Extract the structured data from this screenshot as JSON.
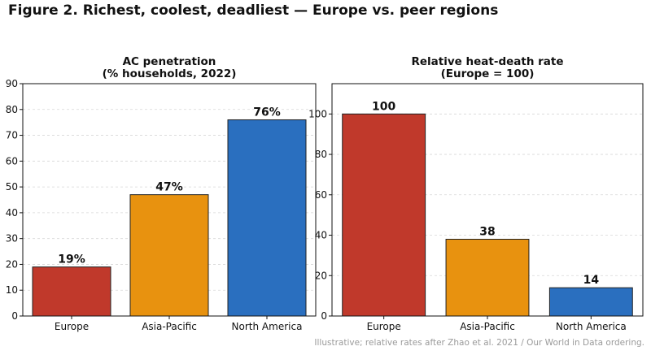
{
  "figure_title": "Figure 2.  Richest, coolest, deadliest — Europe vs. peer regions",
  "footnote": "Illustrative; relative rates after Zhao et al. 2021 / Our World in Data ordering.",
  "chart_data": [
    {
      "type": "bar",
      "title_lines": [
        "AC penetration",
        "(% households, 2022)"
      ],
      "categories": [
        "Europe",
        "Asia-Pacific",
        "North America"
      ],
      "values": [
        19,
        47,
        76
      ],
      "data_labels": [
        "19%",
        "47%",
        "76%"
      ],
      "colors": [
        "#c0392b",
        "#e8920f",
        "#2a6fbf"
      ],
      "ylim": [
        0,
        90
      ],
      "yticks": [
        0,
        10,
        20,
        30,
        40,
        50,
        60,
        70,
        80,
        90
      ],
      "grid": "horizontal dashed"
    },
    {
      "type": "bar",
      "title_lines": [
        "Relative heat-death rate",
        "(Europe = 100)"
      ],
      "categories": [
        "Europe",
        "Asia-Pacific",
        "North America"
      ],
      "values": [
        100,
        38,
        14
      ],
      "data_labels": [
        "100",
        "38",
        "14"
      ],
      "colors": [
        "#c0392b",
        "#e8920f",
        "#2a6fbf"
      ],
      "ylim": [
        0,
        115
      ],
      "yticks": [
        0,
        20,
        40,
        60,
        80,
        100
      ],
      "grid": "horizontal dashed"
    }
  ]
}
